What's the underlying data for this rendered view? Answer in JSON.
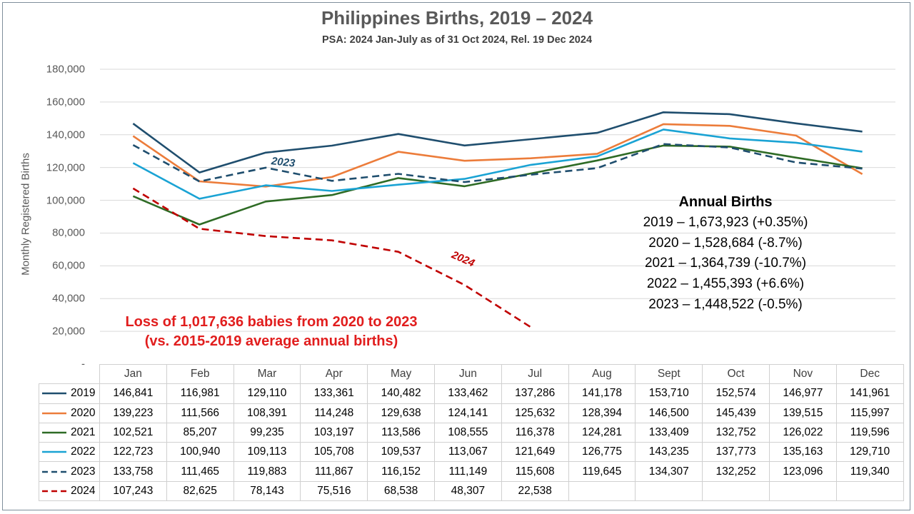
{
  "chart_data": {
    "type": "line",
    "title": "Philippines Births, 2019 – 2024",
    "subtitle": "PSA: 2024 Jan-July as of 31 Oct 2024, Rel. 19 Dec 2024",
    "ylabel": "Monthly Registered Births",
    "xlabel": "",
    "ylim": [
      0,
      180000
    ],
    "y_ticks": [
      "-",
      "20,000",
      "40,000",
      "60,000",
      "80,000",
      "100,000",
      "120,000",
      "140,000",
      "160,000",
      "180,000"
    ],
    "grid": true,
    "categories": [
      "Jan",
      "Feb",
      "Mar",
      "Apr",
      "May",
      "Jun",
      "Jul",
      "Aug",
      "Sept",
      "Oct",
      "Nov",
      "Dec"
    ],
    "series": [
      {
        "name": "2019",
        "color": "#1f4e6e",
        "dashed": false,
        "values": [
          146841,
          116981,
          129110,
          133361,
          140482,
          133462,
          137286,
          141178,
          153710,
          152574,
          146977,
          141961
        ],
        "display": [
          "146,841",
          "116,981",
          "129,110",
          "133,361",
          "140,482",
          "133,462",
          "137,286",
          "141,178",
          "153,710",
          "152,574",
          "146,977",
          "141,961"
        ]
      },
      {
        "name": "2020",
        "color": "#ec7c3a",
        "dashed": false,
        "values": [
          139223,
          111566,
          108391,
          114248,
          129638,
          124141,
          125632,
          128394,
          146500,
          145439,
          139515,
          115997
        ],
        "display": [
          "139,223",
          "111,566",
          "108,391",
          "114,248",
          "129,638",
          "124,141",
          "125,632",
          "128,394",
          "146,500",
          "145,439",
          "139,515",
          "115,997"
        ]
      },
      {
        "name": "2021",
        "color": "#2e6b25",
        "dashed": false,
        "values": [
          102521,
          85207,
          99235,
          103197,
          113586,
          108555,
          116378,
          124281,
          133409,
          132752,
          126022,
          119596
        ],
        "display": [
          "102,521",
          "85,207",
          "99,235",
          "103,197",
          "113,586",
          "108,555",
          "116,378",
          "124,281",
          "133,409",
          "132,752",
          "126,022",
          "119,596"
        ]
      },
      {
        "name": "2022",
        "color": "#1aa3d4",
        "dashed": false,
        "values": [
          122723,
          100940,
          109113,
          105708,
          109537,
          113067,
          121649,
          126775,
          143235,
          137773,
          135163,
          129710
        ],
        "display": [
          "122,723",
          "100,940",
          "109,113",
          "105,708",
          "109,537",
          "113,067",
          "121,649",
          "126,775",
          "143,235",
          "137,773",
          "135,163",
          "129,710"
        ]
      },
      {
        "name": "2023",
        "color": "#1f4e6e",
        "dashed": true,
        "values": [
          133758,
          111465,
          119883,
          111867,
          116152,
          111149,
          115608,
          119645,
          134307,
          132252,
          123096,
          119340
        ],
        "display": [
          "133,758",
          "111,465",
          "119,883",
          "111,867",
          "116,152",
          "111,149",
          "115,608",
          "119,645",
          "134,307",
          "132,252",
          "123,096",
          "119,340"
        ]
      },
      {
        "name": "2024",
        "color": "#c00000",
        "dashed": true,
        "values": [
          107243,
          82625,
          78143,
          75516,
          68538,
          48307,
          22538,
          null,
          null,
          null,
          null,
          null
        ],
        "display": [
          "107,243",
          "82,625",
          "78,143",
          "75,516",
          "68,538",
          "48,307",
          "22,538",
          "",
          "",
          "",
          "",
          ""
        ]
      }
    ],
    "annotations": [
      {
        "text": "2023",
        "color": "#1f4e6e",
        "near_series": "2023",
        "month": "Mar"
      },
      {
        "text": "2024",
        "color": "#c00000",
        "near_series": "2024",
        "month": "Jun"
      }
    ],
    "data_table": true
  },
  "annual_births": {
    "title": "Annual Births",
    "lines": [
      "2019 – 1,673,923 (+0.35%)",
      "2020 – 1,528,684 (-8.7%)",
      "2021 – 1,364,739 (-10.7%)",
      "2022 – 1,455,393 (+6.6%)",
      "2023 – 1,448,522 (-0.5%)"
    ]
  },
  "loss_note": {
    "line1": "Loss of 1,017,636 babies from 2020 to 2023",
    "line2": "(vs. 2015-2019 average annual births)",
    "color": "#e11d1d"
  }
}
